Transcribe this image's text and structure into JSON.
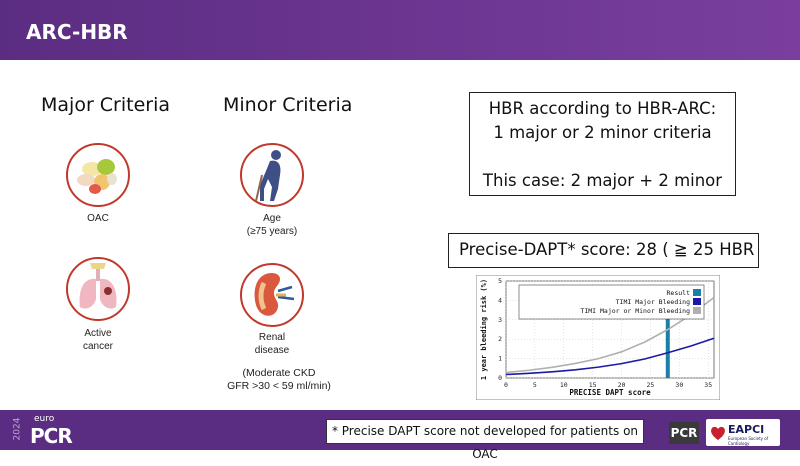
{
  "header": {
    "title": "ARC-HBR"
  },
  "major": {
    "title": "Major Criteria",
    "items": [
      {
        "icon": "pills-icon",
        "label": "OAC"
      },
      {
        "icon": "lungs-icon",
        "label_line1": "Active",
        "label_line2": "cancer"
      }
    ]
  },
  "minor": {
    "title": "Minor Criteria",
    "items": [
      {
        "icon": "elderly-person-icon",
        "label_line1": "Age",
        "label_line2": "(≥75 years)"
      },
      {
        "icon": "kidney-icon",
        "label_line1": "Renal",
        "label_line2": "disease",
        "note_line1": "(Moderate CKD",
        "note_line2": "GFR >30 < 59 ml/min)"
      }
    ]
  },
  "hbr_box": {
    "line1": "HBR according to HBR-ARC:",
    "line2": "1 major or 2 minor criteria",
    "line3": "This case: 2 major + 2 minor"
  },
  "score_box": {
    "text": "Precise-DAPT* score: 28 ( ≧ 25 HBR"
  },
  "chart_data": {
    "type": "line",
    "xlabel": "PRECISE DAPT score",
    "ylabel": "1 year bleeding risk (%)",
    "xlim": [
      0,
      36
    ],
    "ylim": [
      0,
      5
    ],
    "xticks": [
      0,
      5,
      10,
      15,
      20,
      25,
      30,
      35
    ],
    "yticks": [
      0,
      1,
      2,
      3,
      4,
      5
    ],
    "legend_position": "top-right",
    "result_x": 28,
    "series": [
      {
        "name": "Result",
        "color": "#1a7fa8"
      },
      {
        "name": "TIMI Major Bleeding",
        "color": "#1a1aa6",
        "x": [
          0,
          4,
          8,
          12,
          16,
          20,
          24,
          28,
          32,
          36
        ],
        "y": [
          0.18,
          0.24,
          0.32,
          0.42,
          0.56,
          0.74,
          0.98,
          1.3,
          1.65,
          2.05
        ]
      },
      {
        "name": "TIMI Major or Minor Bleeding",
        "color": "#b0b0b0",
        "x": [
          0,
          4,
          8,
          12,
          16,
          20,
          24,
          28,
          32,
          36
        ],
        "y": [
          0.28,
          0.4,
          0.55,
          0.75,
          1.0,
          1.35,
          1.85,
          2.5,
          3.25,
          4.15
        ]
      }
    ]
  },
  "footer": {
    "year": "2024",
    "brand_prefix": "euro",
    "brand": "PCR",
    "note": "* Precise DAPT score not developed for patients on OAC",
    "logo_pcr": "PCR",
    "logo_eapci": "EAPCI",
    "logo_eapci_sub": "European Society of Cardiology"
  },
  "colors": {
    "header": "#5b2d82",
    "circle_border": "#c0392b"
  }
}
